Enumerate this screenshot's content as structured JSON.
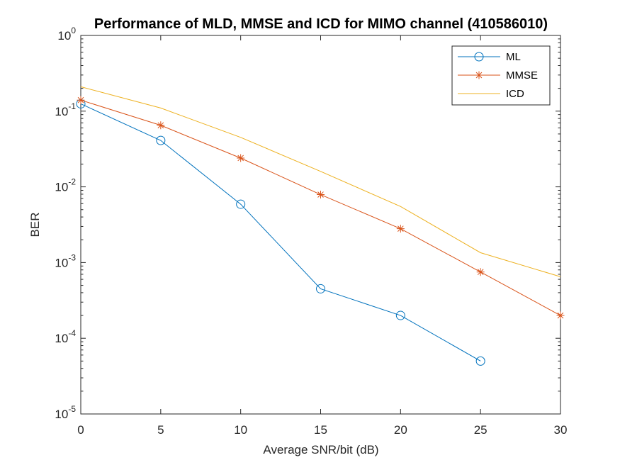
{
  "chart_data": {
    "type": "line",
    "title": "Performance of MLD, MMSE and ICD for MIMO channel (410586010)",
    "xlabel": "Average SNR/bit (dB)",
    "ylabel": "BER",
    "xlim": [
      0,
      30
    ],
    "ylim": [
      1e-05,
      1
    ],
    "yscale": "log",
    "x_ticks": [
      0,
      5,
      10,
      15,
      20,
      25,
      30
    ],
    "y_ticks": [
      {
        "base": "10",
        "exp": "0"
      },
      {
        "base": "10",
        "exp": "-1"
      },
      {
        "base": "10",
        "exp": "-2"
      },
      {
        "base": "10",
        "exp": "-3"
      },
      {
        "base": "10",
        "exp": "-4"
      },
      {
        "base": "10",
        "exp": "-5"
      }
    ],
    "grid": false,
    "legend_position": "top-right",
    "series": [
      {
        "name": "ML",
        "color": "#0072BD",
        "marker": "circle",
        "x": [
          0,
          5,
          10,
          15,
          20,
          25
        ],
        "values": [
          0.125,
          0.041,
          0.0059,
          0.00045,
          0.0002,
          5e-05
        ]
      },
      {
        "name": "MMSE",
        "color": "#D95319",
        "marker": "asterisk",
        "x": [
          0,
          5,
          10,
          15,
          20,
          25,
          30
        ],
        "values": [
          0.14,
          0.065,
          0.024,
          0.0079,
          0.0028,
          0.00075,
          0.0002
        ]
      },
      {
        "name": "ICD",
        "color": "#EDB120",
        "marker": "none",
        "x": [
          0,
          5,
          10,
          15,
          20,
          25,
          30
        ],
        "values": [
          0.21,
          0.11,
          0.045,
          0.016,
          0.0055,
          0.00135,
          0.00065
        ]
      }
    ]
  }
}
